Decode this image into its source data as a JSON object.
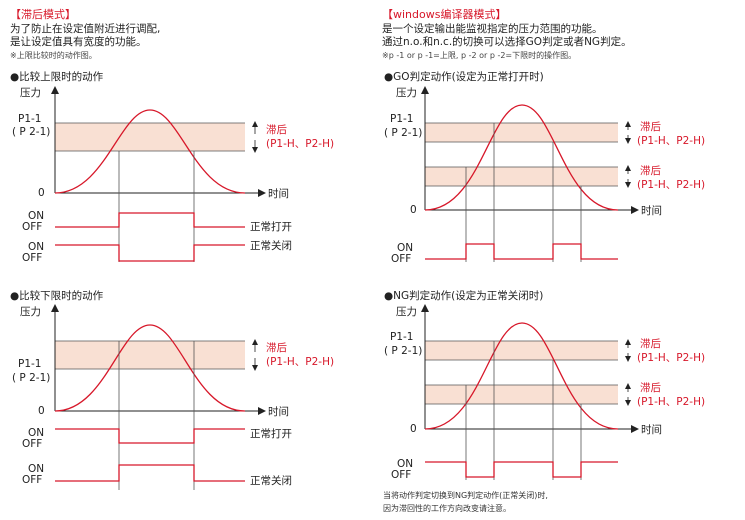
{
  "left": {
    "title": "【滞后模式】",
    "desc_line1": "为了防止在设定值附近进行调配,",
    "desc_line2": "是让设定值具有宽度的功能。",
    "note": "※上限比较时的动作图。",
    "upper_chart": {
      "heading": "●比较上限时的动作",
      "y_axis_label": "压力",
      "p1_label": "P1-1",
      "p2_label": "( P 2-1)",
      "zero_label": "0",
      "x_axis_label": "时间",
      "hysteresis_label": "滞后",
      "hysteresis_sub": "(P1-H、P2-H)",
      "on_label": "ON",
      "off_label": "OFF",
      "normally_open": "正常打开",
      "normally_closed": "正常关闭"
    },
    "lower_chart": {
      "heading": "●比较下限时的动作",
      "y_axis_label": "压力",
      "p1_label": "P1-1",
      "p2_label": "( P 2-1)",
      "zero_label": "0",
      "x_axis_label": "时间",
      "hysteresis_label": "滞后",
      "hysteresis_sub": "(P1-H、P2-H)",
      "on_label": "ON",
      "off_label": "OFF",
      "normally_open": "正常打开",
      "normally_closed": "正常关闭"
    }
  },
  "right": {
    "title": "【windows编译器模式】",
    "desc_line1": "是一个设定输出能监视指定的压力范围的功能。",
    "desc_line2": "通过n.o.和n.c.的切换可以选择GO判定或者NG判定。",
    "note": "※p -1 or p -1=上限, p -2 or p -2=下限时的操作图。",
    "go_chart": {
      "heading": "●GO判定动作(设定为正常打开时)",
      "y_axis_label": "压力",
      "p1_label": "P1-1",
      "p2_label": "( P 2-1)",
      "zero_label": "0",
      "x_axis_label": "时间",
      "hysteresis_label": "滞后",
      "hysteresis_sub": "(P1-H、P2-H)",
      "on_label": "ON",
      "off_label": "OFF"
    },
    "ng_chart": {
      "heading": "●NG判定动作(设定为正常关闭时)",
      "y_axis_label": "压力",
      "p1_label": "P1-1",
      "p2_label": "( P 2-1)",
      "zero_label": "0",
      "x_axis_label": "时间",
      "hysteresis_label": "滞后",
      "hysteresis_sub": "(P1-H、P2-H)",
      "on_label": "ON",
      "off_label": "OFF"
    },
    "footnote_line1": "当将动作判定切换到NG判定动作(正常关闭)时,",
    "footnote_line2": "因为滞回性的工作方向改变请注意。"
  },
  "colors": {
    "accent_red": "#d7182a",
    "band_fill": "#f9e0d3",
    "line_gray": "#555555",
    "text": "#222222"
  }
}
